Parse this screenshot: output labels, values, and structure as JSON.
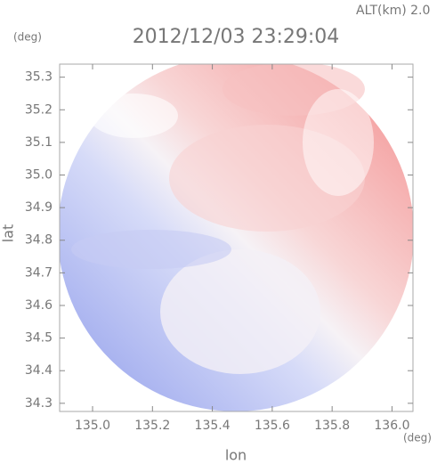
{
  "chart_data": {
    "type": "heatmap",
    "title": "2012/12/03 23:29:04",
    "subtitle": "ALT(km)  2.0",
    "x_label": "lon",
    "y_label": "lat",
    "x_unit": "(deg)",
    "y_unit": "(deg)",
    "xlim": [
      134.89,
      136.07
    ],
    "ylim": [
      34.275,
      35.34
    ],
    "xticks": [
      {
        "value": 135,
        "label": "135.0"
      },
      135.2,
      135.4,
      135.6,
      135.8,
      {
        "value": 136,
        "label": "136.0"
      }
    ],
    "yticks": [
      34.3,
      34.4,
      34.5,
      34.6,
      34.7,
      34.8,
      34.9,
      {
        "value": 35,
        "label": "35.0"
      },
      35.1,
      35.2,
      35.3
    ]
  }
}
